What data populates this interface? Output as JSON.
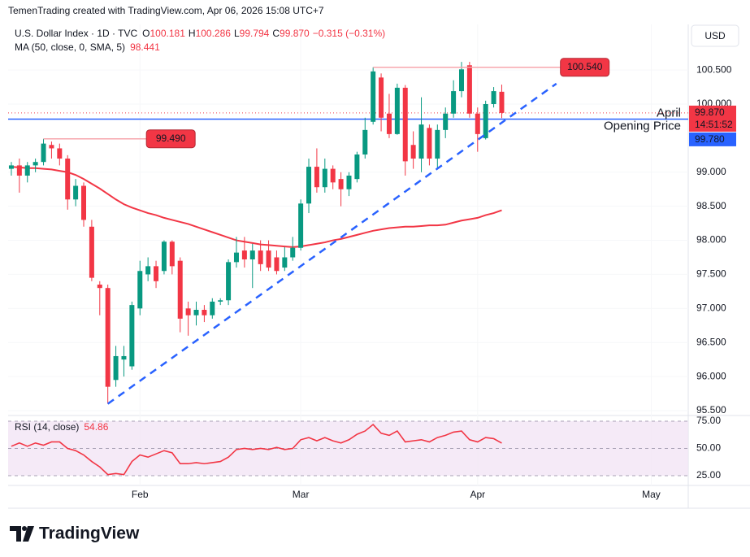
{
  "header": "TemenTrading created with TradingView.com, Apr 06, 2026 15:08 UTC+7",
  "chart_data": {
    "type": "candlestick",
    "symbol": "U.S. Dollar Index · 1D · TVC",
    "legend_ohlc": [
      {
        "key": "O",
        "value": "100.181"
      },
      {
        "key": "H",
        "value": "100.286"
      },
      {
        "key": "L",
        "value": "99.794"
      },
      {
        "key": "C",
        "value": "99.870"
      }
    ],
    "change_label": "−0.315 (−0.31%)",
    "currency": "USD",
    "colors": {
      "up": "#089981",
      "down": "#f23645"
    },
    "open": [
      99.05,
      99.1,
      98.95,
      99.1,
      99.15,
      99.4,
      99.35,
      99.2,
      98.6,
      98.8,
      98.2,
      97.35,
      97.3,
      95.95,
      96.25,
      96.15,
      97.0,
      97.5,
      97.62,
      97.55,
      97.98,
      97.7,
      97.0,
      96.9,
      96.98,
      96.9,
      97.1,
      97.12,
      97.68,
      97.85,
      97.72,
      97.85,
      97.85,
      97.75,
      97.6,
      97.75,
      97.89,
      98.54,
      99.08,
      98.78,
      99.05,
      98.9,
      98.75,
      98.9,
      99.26,
      99.74,
      100.39,
      99.86,
      99.56,
      100.24,
      99.4,
      99.2,
      99.65,
      99.2,
      99.62,
      99.86,
      100.19,
      100.57,
      99.86,
      99.5,
      100.0,
      100.181
    ],
    "high": [
      99.15,
      99.2,
      99.15,
      99.2,
      99.49,
      99.45,
      99.42,
      99.25,
      98.9,
      98.85,
      98.3,
      97.4,
      97.35,
      96.45,
      96.45,
      97.1,
      97.7,
      97.75,
      97.7,
      98.0,
      98.0,
      97.75,
      97.1,
      97.1,
      97.05,
      97.15,
      97.15,
      97.72,
      98.05,
      98.05,
      97.95,
      98.0,
      98.0,
      97.85,
      97.9,
      98.05,
      98.6,
      99.2,
      99.35,
      99.2,
      99.1,
      99.0,
      99.0,
      99.3,
      99.8,
      100.54,
      100.45,
      100.15,
      100.3,
      100.28,
      99.6,
      100.1,
      99.7,
      99.7,
      99.95,
      100.35,
      100.62,
      100.62,
      99.95,
      100.05,
      100.25,
      100.286
    ],
    "low": [
      98.95,
      98.7,
      98.85,
      99.0,
      99.1,
      99.2,
      99.1,
      98.45,
      98.5,
      98.2,
      97.4,
      96.9,
      95.6,
      95.85,
      96.0,
      96.1,
      96.9,
      97.4,
      97.3,
      97.5,
      97.5,
      96.65,
      96.6,
      96.75,
      96.8,
      96.85,
      97.05,
      97.05,
      97.6,
      97.6,
      97.3,
      97.55,
      97.55,
      97.5,
      97.55,
      97.7,
      97.85,
      98.4,
      98.7,
      98.7,
      98.75,
      98.5,
      98.65,
      98.85,
      99.2,
      99.7,
      99.6,
      99.5,
      99.55,
      98.95,
      99.05,
      99.0,
      99.1,
      99.05,
      99.5,
      99.8,
      100.1,
      99.8,
      99.3,
      99.48,
      99.95,
      99.794
    ],
    "close": [
      99.1,
      98.95,
      99.1,
      99.15,
      99.42,
      99.35,
      99.2,
      98.6,
      98.8,
      98.3,
      97.45,
      97.3,
      95.85,
      96.3,
      96.3,
      97.05,
      97.55,
      97.62,
      97.4,
      97.98,
      97.62,
      96.85,
      96.9,
      96.98,
      96.9,
      97.1,
      97.12,
      97.68,
      97.82,
      97.72,
      97.85,
      97.65,
      97.6,
      97.55,
      97.75,
      97.89,
      98.54,
      99.08,
      98.78,
      99.05,
      98.85,
      98.75,
      98.95,
      99.26,
      99.62,
      100.48,
      99.8,
      99.56,
      100.24,
      99.16,
      99.2,
      99.7,
      99.2,
      99.62,
      99.86,
      100.19,
      100.51,
      99.86,
      99.56,
      100.0,
      100.19,
      99.87
    ],
    "ma": {
      "name": "MA (50, close, 0, SMA, 5)",
      "color": "#f23645",
      "values": [
        99.08,
        99.07,
        99.06,
        99.06,
        99.05,
        99.04,
        99.02,
        99.0,
        98.96,
        98.9,
        98.83,
        98.76,
        98.68,
        98.6,
        98.53,
        98.48,
        98.44,
        98.4,
        98.37,
        98.33,
        98.3,
        98.27,
        98.24,
        98.2,
        98.16,
        98.12,
        98.08,
        98.04,
        98.0,
        97.98,
        97.96,
        97.94,
        97.93,
        97.92,
        97.91,
        97.9,
        97.91,
        97.93,
        97.95,
        97.97,
        98.0,
        98.02,
        98.05,
        98.08,
        98.11,
        98.14,
        98.16,
        98.18,
        98.19,
        98.2,
        98.2,
        98.21,
        98.22,
        98.22,
        98.23,
        98.26,
        98.29,
        98.31,
        98.33,
        98.37,
        98.4,
        98.441
      ]
    },
    "xlim": [
      -0.4,
      84.2
    ],
    "xticks": [
      {
        "value": 16,
        "label": "Feb"
      },
      {
        "value": 36,
        "label": "Mar"
      },
      {
        "value": 58,
        "label": "Apr"
      },
      {
        "value": 79.6,
        "label": "May"
      }
    ],
    "ylim": [
      95.44,
      101.17
    ],
    "yticks": [
      {
        "value": 95.5,
        "label": "95.500"
      },
      {
        "value": 96,
        "label": "96.000"
      },
      {
        "value": 96.5,
        "label": "96.500"
      },
      {
        "value": 97,
        "label": "97.000"
      },
      {
        "value": 97.5,
        "label": "97.500"
      },
      {
        "value": 98,
        "label": "98.000"
      },
      {
        "value": 98.5,
        "label": "98.500"
      },
      {
        "value": 99,
        "label": "99.000"
      },
      {
        "value": 100,
        "label": "100.000"
      },
      {
        "value": 100.5,
        "label": "100.500"
      }
    ],
    "last_price": {
      "value": 99.87,
      "label": "99.870",
      "countdown": "14:51:52"
    },
    "level_line": {
      "line1": "April",
      "line2": "Opening Price",
      "value": 99.78,
      "label": "99.780",
      "color": "#2962ff"
    },
    "price_notes": [
      {
        "x": [
          45,
          68.3
        ],
        "value": 100.54,
        "label": "100.540"
      },
      {
        "x": [
          4,
          16.8
        ],
        "value": 99.49,
        "label": "99.490"
      }
    ],
    "trendline": {
      "x": [
        12,
        67.8
      ],
      "y": [
        95.6,
        100.3
      ],
      "color": "#2962ff"
    },
    "rsi": {
      "name": "RSI (14, close)",
      "color": "#f23645",
      "values": [
        52,
        55,
        52,
        55,
        53,
        56,
        56,
        50,
        48,
        44,
        38,
        33,
        26,
        27,
        26,
        38,
        44,
        42,
        45,
        48,
        46,
        36,
        36,
        37,
        36,
        37,
        38,
        42,
        49,
        50,
        49,
        50,
        49,
        51,
        49,
        50,
        58,
        60,
        57,
        60,
        57,
        55,
        58,
        63,
        66,
        72,
        64,
        62,
        66,
        56,
        57,
        58,
        56,
        60,
        62,
        65,
        66,
        58,
        56,
        60,
        59,
        54.86
      ],
      "ylim": [
        17.5,
        79.5
      ],
      "yticks": [
        {
          "value": 25,
          "label": "25.00"
        },
        {
          "value": 50,
          "label": "50.00"
        },
        {
          "value": 75,
          "label": "75.00"
        }
      ]
    }
  },
  "footer": "TradingView"
}
